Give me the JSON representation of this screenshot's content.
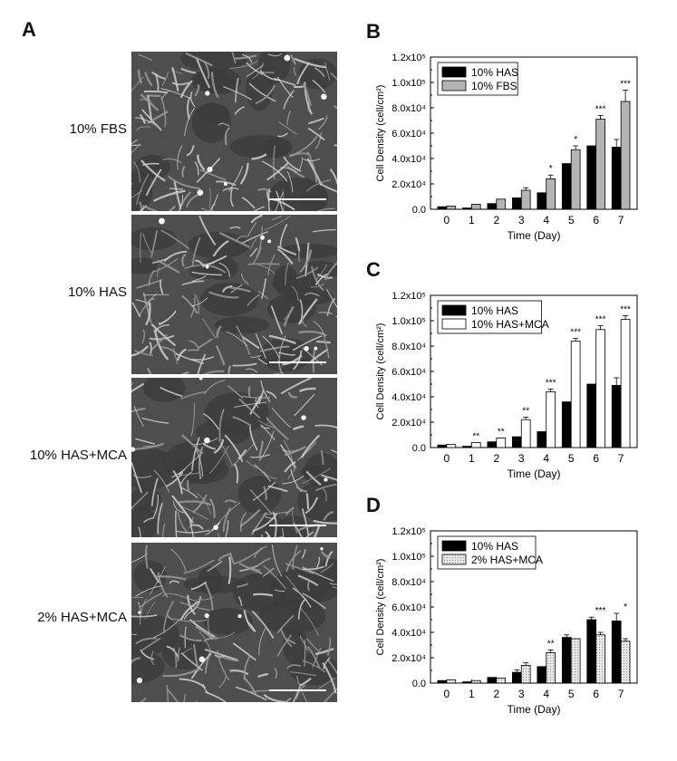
{
  "panel_a": {
    "letter": "A",
    "images": [
      {
        "label": "10% FBS"
      },
      {
        "label": "10% HAS"
      },
      {
        "label": "10% HAS+MCA"
      },
      {
        "label": "2% HAS+MCA"
      }
    ]
  },
  "chart_data": [
    {
      "type": "bar",
      "panel": "B",
      "categories": [
        "0",
        "1",
        "2",
        "3",
        "4",
        "5",
        "6",
        "7"
      ],
      "xlabel": "Time (Day)",
      "ylabel": "Cell Density (cell/cm²)",
      "ylim": [
        0,
        120000
      ],
      "yticks": [
        "0.0",
        "2.0x10⁴",
        "4.0x10⁴",
        "6.0x10⁴",
        "8.0x10⁴",
        "1.0x10⁵",
        "1.2x10⁵"
      ],
      "legend": "top-left",
      "series": [
        {
          "name": "10% HAS",
          "color": "#000000",
          "values": [
            2000,
            1000,
            4500,
            9000,
            13000,
            36000,
            50000,
            49000
          ],
          "errors": [
            0,
            0,
            0,
            0,
            0,
            0,
            0,
            6000
          ]
        },
        {
          "name": "10% FBS",
          "color": "#b4b4b4",
          "values": [
            2500,
            4000,
            8000,
            15000,
            24000,
            47000,
            71000,
            85000
          ],
          "errors": [
            0,
            0,
            0,
            2000,
            3000,
            3000,
            3000,
            9000
          ]
        }
      ],
      "significance": [
        "",
        "",
        "",
        "",
        "*",
        "*",
        "***",
        "***"
      ]
    },
    {
      "type": "bar",
      "panel": "C",
      "categories": [
        "0",
        "1",
        "2",
        "3",
        "4",
        "5",
        "6",
        "7"
      ],
      "xlabel": "Time (Day)",
      "ylabel": "Cell Density (cell/cm²)",
      "ylim": [
        0,
        120000
      ],
      "yticks": [
        "0.0",
        "2.0x10⁴",
        "4.0x10⁴",
        "6.0x10⁴",
        "8.0x10⁴",
        "1.0x10⁵",
        "1.2x10⁵"
      ],
      "legend": "top-left",
      "series": [
        {
          "name": "10% HAS",
          "color": "#000000",
          "values": [
            2000,
            1000,
            4500,
            8500,
            12500,
            36000,
            50000,
            49000
          ],
          "errors": [
            0,
            0,
            0,
            0,
            0,
            0,
            0,
            6000
          ]
        },
        {
          "name": "10% HAS+MCA",
          "color": "#ffffff",
          "values": [
            2500,
            4000,
            7500,
            22000,
            44000,
            84000,
            93000,
            101000
          ],
          "errors": [
            0,
            0,
            0,
            2000,
            2000,
            2000,
            3000,
            3000
          ]
        }
      ],
      "significance": [
        "",
        "**",
        "**",
        "**",
        "***",
        "***",
        "***",
        "***"
      ]
    },
    {
      "type": "bar",
      "panel": "D",
      "categories": [
        "0",
        "1",
        "2",
        "3",
        "4",
        "5",
        "6",
        "7"
      ],
      "xlabel": "Time (Day)",
      "ylabel": "Cell Density (cell/cm²)",
      "ylim": [
        0,
        120000
      ],
      "yticks": [
        "0.0",
        "2.0x10⁴",
        "4.0x10⁴",
        "6.0x10⁴",
        "8.0x10⁴",
        "1.0x10⁵",
        "1.2x10⁵"
      ],
      "legend": "top-left",
      "series": [
        {
          "name": "10% HAS",
          "color": "#000000",
          "values": [
            2000,
            1000,
            4500,
            8500,
            13000,
            36000,
            50000,
            49000
          ],
          "errors": [
            0,
            0,
            0,
            2000,
            0,
            2000,
            2000,
            6000
          ]
        },
        {
          "name": "2% HAS+MCA",
          "color": "#dcdcdc",
          "pattern": "dots",
          "values": [
            2500,
            2000,
            4000,
            14000,
            24000,
            35000,
            38000,
            33000
          ],
          "errors": [
            0,
            0,
            0,
            2000,
            2000,
            0,
            2000,
            2000
          ]
        }
      ],
      "significance": [
        "",
        "",
        "",
        "",
        "**",
        "",
        "***",
        "*"
      ]
    }
  ]
}
